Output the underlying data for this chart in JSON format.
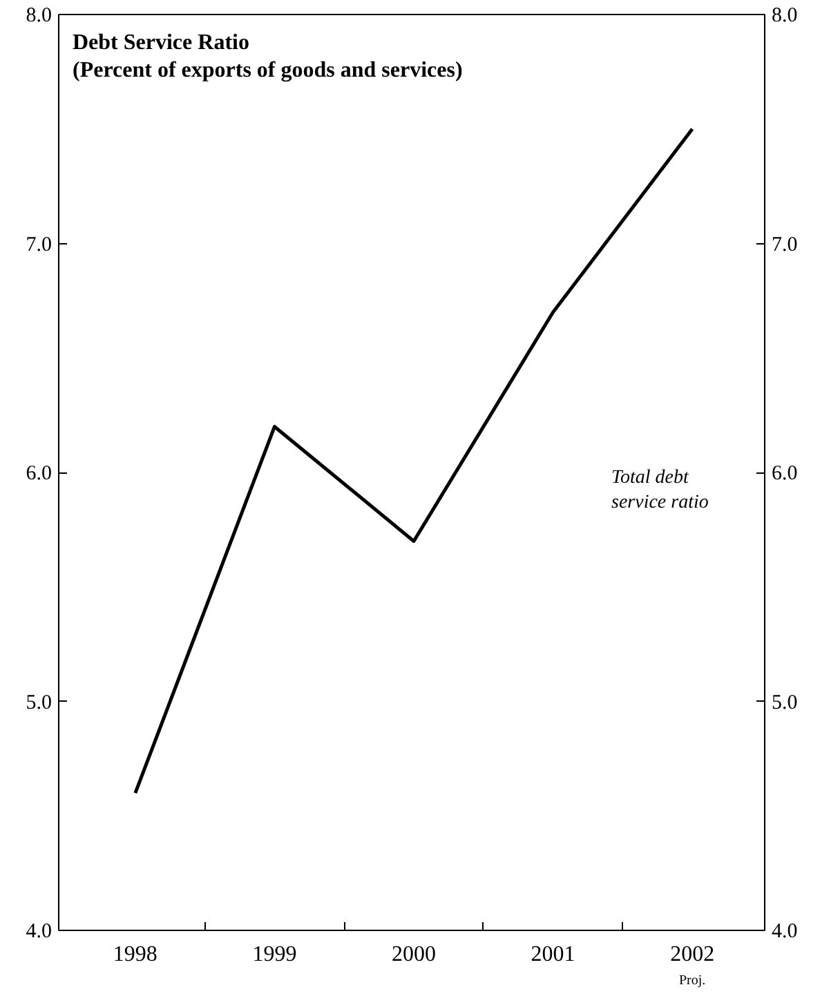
{
  "chart_data": {
    "type": "line",
    "title": "Debt Service Ratio",
    "subtitle": "(Percent of exports of goods and services)",
    "categories": [
      "1998",
      "1999",
      "2000",
      "2001",
      "2002"
    ],
    "series": [
      {
        "name": "Total debt service ratio",
        "color": "#000000",
        "values": [
          4.6,
          6.2,
          5.7,
          6.7,
          7.5
        ]
      }
    ],
    "ylim": [
      4,
      8
    ],
    "yticks": [
      {
        "value": 4,
        "label": "4.0"
      },
      {
        "value": 5,
        "label": "5.0"
      },
      {
        "value": 6,
        "label": "6.0"
      },
      {
        "value": 7,
        "label": "7.0"
      },
      {
        "value": 8,
        "label": "8.0"
      }
    ],
    "y2lim": [
      4,
      8
    ],
    "y2ticks": [
      {
        "value": 4,
        "label": "4.0"
      },
      {
        "value": 5,
        "label": "5.0"
      },
      {
        "value": 6,
        "label": "6.0"
      },
      {
        "value": 7,
        "label": "7.0"
      },
      {
        "value": 8,
        "label": "8.0"
      }
    ],
    "annotations": [
      "Proj."
    ],
    "grid": false,
    "legend": false,
    "marker": "none",
    "line_style": "solid"
  }
}
